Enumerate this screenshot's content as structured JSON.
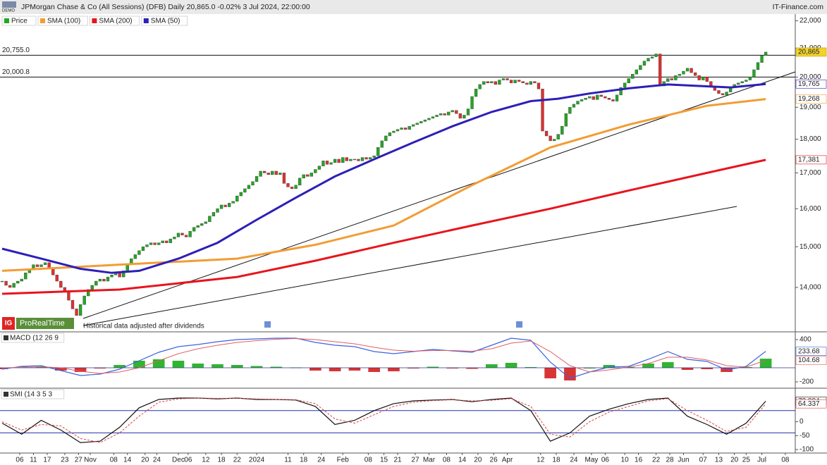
{
  "header": {
    "title": "JPMorgan Chase & Co (All Sessions) (DFB) Daily 20,865.0 -0.02% 3 Jul 2024, 22:00:00",
    "source": "IT-Finance.com",
    "badge": "DEMO"
  },
  "chart_data": [
    {
      "type": "candlestick",
      "name": "Price",
      "color_up": "#22a822",
      "color_down": "#e0302f",
      "log_scale": true,
      "ylim": [
        13000,
        22200
      ],
      "yticks": [
        {
          "value": 14000,
          "label": "14,000"
        },
        {
          "value": 15000,
          "label": "15,000"
        },
        {
          "value": 16000,
          "label": "16,000"
        },
        {
          "value": 17000,
          "label": "17,000"
        },
        {
          "value": 18000,
          "label": "18,000"
        },
        {
          "value": 19000,
          "label": "19,000"
        },
        {
          "value": 20000,
          "label": "20,000"
        },
        {
          "value": 21000,
          "label": "21,000"
        },
        {
          "value": 22000,
          "label": "22,000"
        }
      ],
      "xlim": [
        0,
        202
      ],
      "xticks": [
        {
          "value": 4.5,
          "label": "06"
        },
        {
          "value": 8,
          "label": "11"
        },
        {
          "value": 11.5,
          "label": "17"
        },
        {
          "value": 16,
          "label": "23"
        },
        {
          "value": 19.5,
          "label": "27"
        },
        {
          "value": 22.5,
          "label": "Nov"
        },
        {
          "value": 28.5,
          "label": "08"
        },
        {
          "value": 32,
          "label": "14"
        },
        {
          "value": 36.5,
          "label": "20"
        },
        {
          "value": 39.5,
          "label": "24"
        },
        {
          "value": 45,
          "label": "Dec"
        },
        {
          "value": 47.5,
          "label": "06"
        },
        {
          "value": 52,
          "label": "12"
        },
        {
          "value": 56,
          "label": "18"
        },
        {
          "value": 60,
          "label": "22"
        },
        {
          "value": 65,
          "label": "2024"
        },
        {
          "value": 73,
          "label": "11"
        },
        {
          "value": 77,
          "label": "18"
        },
        {
          "value": 81.5,
          "label": "24"
        },
        {
          "value": 87,
          "label": "Feb"
        },
        {
          "value": 93.5,
          "label": "08"
        },
        {
          "value": 97.5,
          "label": "15"
        },
        {
          "value": 101,
          "label": "21"
        },
        {
          "value": 105.5,
          "label": "27"
        },
        {
          "value": 109,
          "label": "Mar"
        },
        {
          "value": 113.5,
          "label": "08"
        },
        {
          "value": 117.5,
          "label": "14"
        },
        {
          "value": 121.5,
          "label": "20"
        },
        {
          "value": 125.5,
          "label": "26"
        },
        {
          "value": 129,
          "label": "Apr"
        },
        {
          "value": 137.5,
          "label": "12"
        },
        {
          "value": 141.5,
          "label": "18"
        },
        {
          "value": 146,
          "label": "24"
        },
        {
          "value": 150.5,
          "label": "May"
        },
        {
          "value": 154,
          "label": "06"
        },
        {
          "value": 159,
          "label": "10"
        },
        {
          "value": 162.5,
          "label": "16"
        },
        {
          "value": 167,
          "label": "22"
        },
        {
          "value": 170.5,
          "label": "28"
        },
        {
          "value": 174,
          "label": "Jun"
        },
        {
          "value": 179,
          "label": "07"
        },
        {
          "value": 183,
          "label": "13"
        },
        {
          "value": 187,
          "label": "20"
        },
        {
          "value": 190,
          "label": "25"
        },
        {
          "value": 194,
          "label": "Jul"
        },
        {
          "value": 200,
          "label": "08"
        }
      ],
      "closes": [
        14150,
        14050,
        14000,
        14100,
        14150,
        14200,
        14350,
        14450,
        14550,
        14500,
        14550,
        14600,
        14450,
        14300,
        14150,
        14000,
        13900,
        13700,
        13500,
        13350,
        13600,
        13800,
        13950,
        14050,
        14150,
        14200,
        14150,
        14250,
        14300,
        14350,
        14250,
        14400,
        14550,
        14700,
        14800,
        14900,
        15000,
        15050,
        15100,
        15050,
        15100,
        15150,
        15100,
        15200,
        15250,
        15350,
        15300,
        15250,
        15400,
        15500,
        15550,
        15600,
        15650,
        15800,
        15900,
        16000,
        16100,
        16050,
        16150,
        16200,
        16350,
        16450,
        16550,
        16650,
        16750,
        16900,
        17050,
        17000,
        16950,
        17050,
        16950,
        17000,
        16700,
        16600,
        16550,
        16650,
        16850,
        16950,
        16900,
        17000,
        17100,
        17200,
        17350,
        17250,
        17300,
        17400,
        17300,
        17450,
        17350,
        17400,
        17400,
        17350,
        17450,
        17400,
        17450,
        17500,
        17750,
        17950,
        18100,
        18200,
        18250,
        18300,
        18350,
        18300,
        18400,
        18450,
        18500,
        18550,
        18600,
        18650,
        18700,
        18750,
        18800,
        18750,
        18850,
        18900,
        18800,
        18650,
        18750,
        18950,
        19350,
        19600,
        19750,
        19850,
        19800,
        19850,
        19750,
        19900,
        19950,
        19900,
        19800,
        19900,
        19850,
        19800,
        19750,
        19850,
        19800,
        19600,
        18250,
        18100,
        17950,
        18000,
        18150,
        18400,
        18800,
        19000,
        19100,
        19200,
        19250,
        19300,
        19350,
        19250,
        19400,
        19350,
        19300,
        19250,
        19200,
        19400,
        19650,
        19800,
        19950,
        20100,
        20250,
        20400,
        20550,
        20650,
        20700,
        20800,
        19700,
        19850,
        19950,
        19900,
        20050,
        20100,
        20200,
        20300,
        20150,
        20050,
        19900,
        20000,
        19850,
        19700,
        19550,
        19450,
        19400,
        19500,
        19650,
        19750,
        19800,
        19850,
        19900,
        20000,
        20250,
        20500,
        20750,
        20865
      ],
      "last_label": "20,865",
      "levels": [
        {
          "value": 20755,
          "label": "20,755.0"
        },
        {
          "value": 20000.8,
          "label": "20,000.8"
        }
      ],
      "series": [
        {
          "name": "SMA (100)",
          "color": "#f39c33",
          "x": [
            0,
            20,
            40,
            60,
            80,
            100,
            120,
            140,
            160,
            180,
            195
          ],
          "values": [
            14400,
            14500,
            14600,
            14700,
            15050,
            15550,
            16650,
            17750,
            18450,
            19050,
            19268
          ],
          "last_label": "19,268"
        },
        {
          "name": "SMA (200)",
          "color": "#e8141e",
          "x": [
            0,
            30,
            60,
            80,
            100,
            120,
            140,
            160,
            180,
            195
          ],
          "values": [
            13850,
            13950,
            14250,
            14650,
            15100,
            15550,
            16000,
            16500,
            17000,
            17381
          ],
          "last_label": "17,381"
        },
        {
          "name": "SMA (50)",
          "color": "#2d1fb8",
          "x": [
            0,
            10,
            20,
            28,
            35,
            45,
            55,
            65,
            75,
            85,
            95,
            105,
            115,
            125,
            135,
            142,
            150,
            160,
            170,
            178,
            186,
            195
          ],
          "values": [
            14950,
            14700,
            14450,
            14350,
            14400,
            14700,
            15100,
            15700,
            16300,
            16900,
            17400,
            17900,
            18400,
            18850,
            19200,
            19280,
            19450,
            19620,
            19750,
            19700,
            19650,
            19765
          ],
          "last_label": "19,765"
        }
      ],
      "note": "Historical data adjusted after dividends",
      "logo": "ProRealTime",
      "logo_mark": "IG"
    },
    {
      "type": "macd",
      "title": "MACD (12 26 9",
      "ylim": [
        -280,
        500
      ],
      "yticks": [
        400,
        -200
      ],
      "x": [
        0,
        5,
        10,
        15,
        20,
        25,
        30,
        35,
        40,
        45,
        50,
        55,
        60,
        65,
        70,
        75,
        80,
        85,
        90,
        95,
        100,
        105,
        110,
        115,
        120,
        125,
        130,
        135,
        140,
        145,
        150,
        155,
        160,
        165,
        170,
        175,
        180,
        185,
        190,
        195
      ],
      "macd": {
        "color": "#3d63dd",
        "values": [
          -20,
          20,
          30,
          -40,
          -110,
          -90,
          -20,
          100,
          220,
          300,
          330,
          370,
          400,
          410,
          420,
          420,
          360,
          320,
          300,
          230,
          200,
          230,
          260,
          240,
          220,
          320,
          420,
          390,
          80,
          -150,
          -60,
          10,
          20,
          120,
          230,
          120,
          90,
          -30,
          20,
          233.68
        ],
        "last_label": "233.68"
      },
      "signal": {
        "color": "#e06060",
        "values": [
          0,
          5,
          15,
          0,
          -50,
          -80,
          -60,
          0,
          100,
          200,
          270,
          320,
          360,
          385,
          405,
          415,
          400,
          370,
          340,
          290,
          250,
          235,
          245,
          245,
          235,
          270,
          350,
          380,
          230,
          30,
          -60,
          -30,
          10,
          60,
          150,
          150,
          110,
          30,
          10,
          104.68
        ],
        "last_label": "104.68"
      },
      "histogram": {
        "color_up": "#2fb52f",
        "color_down": "#d93434",
        "values": [
          -20,
          15,
          15,
          -40,
          -60,
          -10,
          40,
          100,
          120,
          100,
          60,
          50,
          40,
          25,
          15,
          5,
          -40,
          -50,
          -40,
          -60,
          -50,
          -5,
          15,
          -5,
          -15,
          50,
          70,
          10,
          -150,
          -180,
          0,
          40,
          10,
          60,
          80,
          -30,
          -20,
          -60,
          10,
          129
        ]
      }
    },
    {
      "type": "smi",
      "title": "SMI (14 3 5 3",
      "ylim": [
        -110,
        118
      ],
      "yticks": [
        0,
        -50,
        -100
      ],
      "levels": [
        40,
        -40
      ],
      "level_color": "#2233aa",
      "x": [
        0,
        5,
        10,
        15,
        20,
        25,
        30,
        35,
        40,
        45,
        50,
        55,
        60,
        65,
        70,
        75,
        80,
        85,
        90,
        95,
        100,
        105,
        110,
        115,
        120,
        125,
        130,
        135,
        140,
        145,
        150,
        155,
        160,
        165,
        170,
        175,
        180,
        185,
        190,
        195
      ],
      "smi": {
        "color": "#111111",
        "values": [
          -5,
          -45,
          5,
          -30,
          -75,
          -70,
          -20,
          50,
          80,
          85,
          85,
          82,
          85,
          80,
          80,
          78,
          55,
          -10,
          5,
          40,
          65,
          75,
          78,
          80,
          72,
          80,
          85,
          40,
          -70,
          -40,
          20,
          45,
          65,
          80,
          85,
          20,
          -10,
          -45,
          -5,
          73.884
        ],
        "last_label": "73.884"
      },
      "signal": {
        "color": "#e04040",
        "values": [
          0,
          -30,
          -10,
          -15,
          -60,
          -75,
          -40,
          20,
          70,
          82,
          85,
          84,
          84,
          82,
          80,
          79,
          65,
          10,
          -5,
          25,
          55,
          70,
          76,
          79,
          75,
          77,
          83,
          55,
          -45,
          -55,
          0,
          35,
          55,
          75,
          83,
          40,
          5,
          -35,
          -20,
          64.337
        ],
        "last_label": "64.337"
      }
    }
  ]
}
